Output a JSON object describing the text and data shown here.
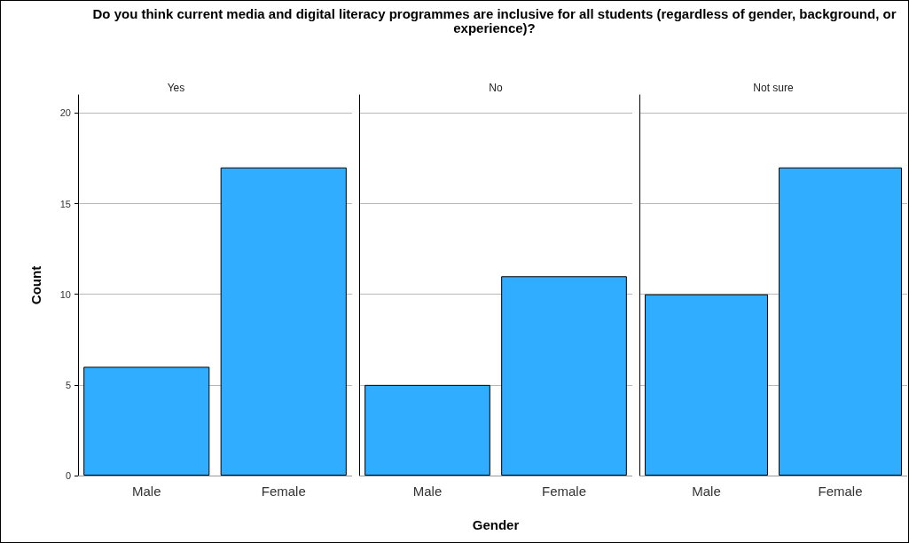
{
  "chart_data": [
    {
      "type": "bar",
      "title": "Do you think current media and digital literacy programmes are inclusive for all students (regardless of gender, background, or experience)?",
      "subtitle": "Yes",
      "ylabel": "Count",
      "categories": [
        "Male",
        "Female"
      ],
      "values": [
        6,
        17
      ],
      "color": "#31adff",
      "ylim": [
        0,
        21
      ],
      "yticks": [
        0,
        5,
        10,
        15,
        20
      ],
      "grid": "y"
    },
    {
      "type": "bar",
      "subtitle": "No",
      "xlabel": "Gender",
      "categories": [
        "Male",
        "Female"
      ],
      "values": [
        5,
        11
      ],
      "color": "#31adff",
      "ylim": [
        0,
        21
      ],
      "yticks": [
        0,
        5,
        10,
        15,
        20
      ],
      "grid": "y",
      "tick_labels": "x"
    },
    {
      "type": "bar",
      "subtitle": "Not sure",
      "categories": [
        "Male",
        "Female"
      ],
      "values": [
        10,
        17
      ],
      "color": "#31adff",
      "ylim": [
        0,
        21
      ],
      "yticks": [
        0,
        5,
        10,
        15,
        20
      ],
      "grid": "y",
      "tick_labels": "x"
    }
  ]
}
